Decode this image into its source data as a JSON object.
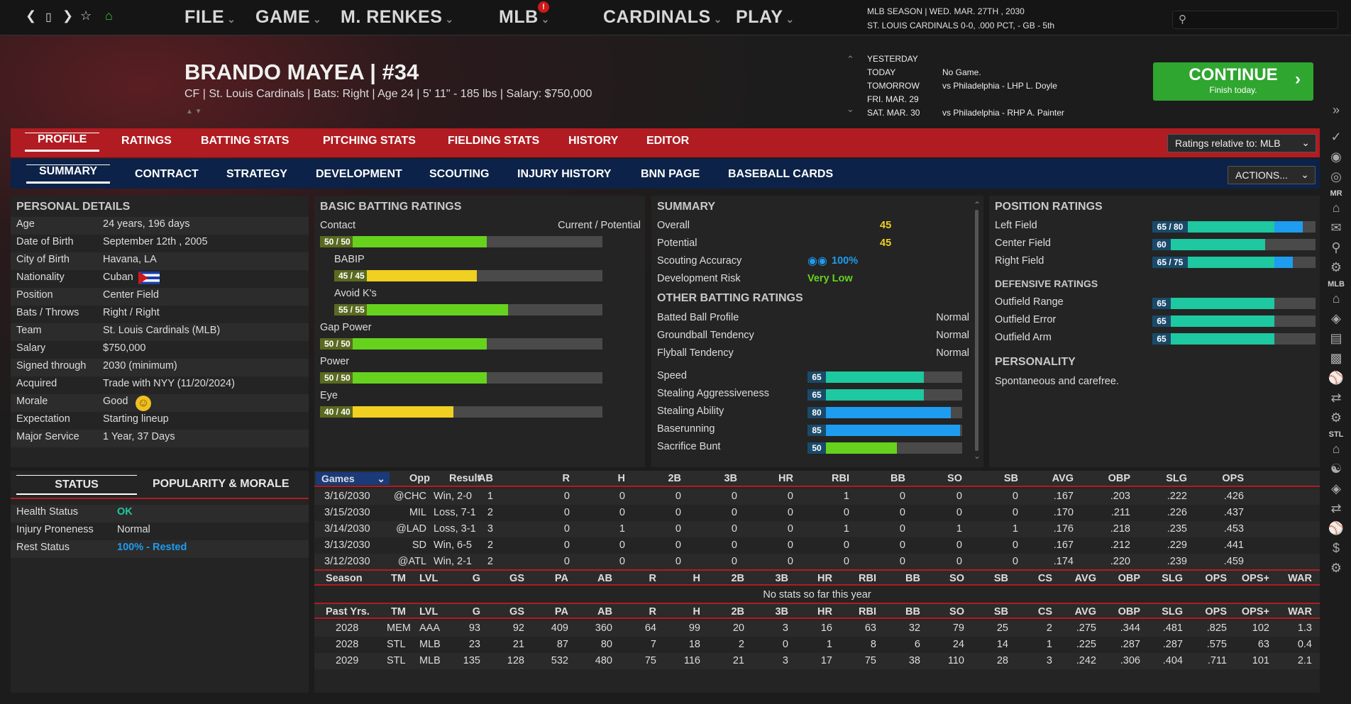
{
  "nav": {
    "icons": [
      "back-icon",
      "phone-icon",
      "forward-icon",
      "star-icon",
      "home-icon"
    ],
    "menus": [
      {
        "label": "FILE",
        "x": 260
      },
      {
        "label": "GAME",
        "x": 360
      },
      {
        "label": "M. RENKES",
        "x": 480
      },
      {
        "label": "MLB",
        "x": 703
      },
      {
        "label": "CARDINALS",
        "x": 850
      },
      {
        "label": "PLAY",
        "x": 1037
      }
    ],
    "badge": "!"
  },
  "season": {
    "line1": "MLB SEASON  |  WED. MAR. 27TH , 2030",
    "line2": "ST. LOUIS CARDINALS  0-0, .000 PCT, - GB - 5th"
  },
  "player": {
    "name": "BRANDO MAYEA  |  #34",
    "info": "CF | St. Louis Cardinals  |  Bats: Right  |  Age 24  |  5' 11\" - 185 lbs  |  Salary: $750,000"
  },
  "schedule": [
    {
      "day": "YESTERDAY",
      "game": ""
    },
    {
      "day": "TODAY",
      "game": "No Game."
    },
    {
      "day": "TOMORROW",
      "game": "vs Philadelphia - LHP L. Doyle"
    },
    {
      "day": "FRI. MAR. 29",
      "game": ""
    },
    {
      "day": "SAT. MAR. 30",
      "game": "vs Philadelphia - RHP A. Painter"
    }
  ],
  "continue": {
    "label": "CONTINUE",
    "sub": "Finish today."
  },
  "tabs1": [
    "PROFILE",
    "RATINGS",
    "BATTING STATS",
    "PITCHING STATS",
    "FIELDING STATS",
    "HISTORY",
    "EDITOR"
  ],
  "ratings_relative": "Ratings relative to: MLB",
  "tabs2": [
    "SUMMARY",
    "CONTRACT",
    "STRATEGY",
    "DEVELOPMENT",
    "SCOUTING",
    "INJURY HISTORY",
    "BNN PAGE",
    "BASEBALL CARDS"
  ],
  "actions": "ACTIONS...",
  "personal": {
    "title": "PERSONAL DETAILS",
    "rows": [
      [
        "Age",
        "24 years, 196 days"
      ],
      [
        "Date of Birth",
        "September 12th , 2005"
      ],
      [
        "City of Birth",
        "Havana, LA"
      ],
      [
        "Nationality",
        "Cuban"
      ],
      [
        "Position",
        "Center Field"
      ],
      [
        "Bats / Throws",
        "Right / Right"
      ],
      [
        "Team",
        "St. Louis Cardinals (MLB)"
      ],
      [
        "Salary",
        "$750,000"
      ],
      [
        "Signed through",
        "2030 (minimum)"
      ],
      [
        "Acquired",
        "Trade with NYY (11/20/2024)"
      ],
      [
        "Morale",
        "Good"
      ],
      [
        "Expectation",
        "Starting lineup"
      ],
      [
        "Major Service",
        "1 Year, 37 Days"
      ]
    ]
  },
  "status": {
    "tab_status": "STATUS",
    "tab_pop": "POPULARITY & MORALE",
    "rows": [
      [
        "Health Status",
        "OK"
      ],
      [
        "Injury Proneness",
        "Normal"
      ],
      [
        "Rest Status",
        "100% - Rested"
      ]
    ]
  },
  "batting": {
    "title": "BASIC BATTING RATINGS",
    "legend": "Current / Potential",
    "items": [
      {
        "label": "Contact",
        "val": "50 / 50",
        "cur": 50,
        "color": "#66d21e",
        "indent": false
      },
      {
        "label": "BABIP",
        "val": "45 / 45",
        "cur": 45,
        "color": "#f0d020",
        "indent": true
      },
      {
        "label": "Avoid K's",
        "val": "55 / 55",
        "cur": 55,
        "color": "#66d21e",
        "indent": true
      },
      {
        "label": "Gap Power",
        "val": "50 / 50",
        "cur": 50,
        "color": "#66d21e",
        "indent": false
      },
      {
        "label": "Power",
        "val": "50 / 50",
        "cur": 50,
        "color": "#66d21e",
        "indent": false
      },
      {
        "label": "Eye",
        "val": "40 / 40",
        "cur": 40,
        "color": "#f0d020",
        "indent": false
      }
    ]
  },
  "summary": {
    "title": "SUMMARY",
    "overall_l": "Overall",
    "overall": "45",
    "potential_l": "Potential",
    "potential": "45",
    "scout_l": "Scouting Accuracy",
    "scout": "100%",
    "risk_l": "Development Risk",
    "risk": "Very Low",
    "other_title": "OTHER BATTING RATINGS",
    "profile": [
      [
        "Batted Ball Profile",
        "Normal"
      ],
      [
        "Groundball Tendency",
        "Normal"
      ],
      [
        "Flyball Tendency",
        "Normal"
      ]
    ],
    "bars": [
      {
        "label": "Speed",
        "val": 65,
        "color": "#1ec8a0"
      },
      {
        "label": "Stealing Aggressiveness",
        "val": 65,
        "color": "#1ec8a0"
      },
      {
        "label": "Stealing Ability",
        "val": 80,
        "color": "#1e9cf0"
      },
      {
        "label": "Baserunning",
        "val": 85,
        "color": "#1e9cf0"
      },
      {
        "label": "Sacrifice Bunt",
        "val": 50,
        "color": "#66d21e"
      }
    ]
  },
  "position": {
    "title": "POSITION RATINGS",
    "items": [
      {
        "label": "Left Field",
        "val": "65 / 80",
        "cur": 65,
        "pot": 80
      },
      {
        "label": "Center Field",
        "val": "60",
        "cur": 60,
        "pot": 60
      },
      {
        "label": "Right Field",
        "val": "65 / 75",
        "cur": 65,
        "pot": 75
      }
    ],
    "def_title": "DEFENSIVE RATINGS",
    "def": [
      {
        "label": "Outfield Range",
        "val": "65",
        "cur": 65
      },
      {
        "label": "Outfield Error",
        "val": "65",
        "cur": 65
      },
      {
        "label": "Outfield Arm",
        "val": "65",
        "cur": 65
      }
    ],
    "pers_title": "PERSONALITY",
    "pers": "Spontaneous and carefree."
  },
  "games": {
    "dropdown": "Games",
    "headers": [
      "Opp",
      "Result",
      "AB",
      "R",
      "H",
      "2B",
      "3B",
      "HR",
      "RBI",
      "BB",
      "SO",
      "SB",
      "AVG",
      "OBP",
      "SLG",
      "OPS"
    ],
    "rows": [
      [
        "3/16/2030",
        "@CHC",
        "Win, 2-0",
        "1",
        "0",
        "0",
        "0",
        "0",
        "0",
        "1",
        "0",
        "0",
        "0",
        ".167",
        ".203",
        ".222",
        ".426"
      ],
      [
        "3/15/2030",
        "MIL",
        "Loss, 7-1",
        "2",
        "0",
        "0",
        "0",
        "0",
        "0",
        "0",
        "0",
        "0",
        "0",
        ".170",
        ".211",
        ".226",
        ".437"
      ],
      [
        "3/14/2030",
        "@LAD",
        "Loss, 3-1",
        "3",
        "0",
        "1",
        "0",
        "0",
        "0",
        "1",
        "0",
        "1",
        "1",
        ".176",
        ".218",
        ".235",
        ".453"
      ],
      [
        "3/13/2030",
        "SD",
        "Win, 6-5",
        "2",
        "0",
        "0",
        "0",
        "0",
        "0",
        "0",
        "0",
        "0",
        "0",
        ".167",
        ".212",
        ".229",
        ".441"
      ],
      [
        "3/12/2030",
        "@ATL",
        "Win, 2-1",
        "2",
        "0",
        "0",
        "0",
        "0",
        "0",
        "0",
        "0",
        "0",
        "0",
        ".174",
        ".220",
        ".239",
        ".459"
      ]
    ]
  },
  "season_tbl": {
    "headers": [
      "Season",
      "TM",
      "LVL",
      "G",
      "GS",
      "PA",
      "AB",
      "R",
      "H",
      "2B",
      "3B",
      "HR",
      "RBI",
      "BB",
      "SO",
      "SB",
      "CS",
      "AVG",
      "OBP",
      "SLG",
      "OPS",
      "OPS+",
      "WAR"
    ],
    "empty": "No stats so far this year"
  },
  "past": {
    "headers": [
      "Past Yrs.",
      "TM",
      "LVL",
      "G",
      "GS",
      "PA",
      "AB",
      "R",
      "H",
      "2B",
      "3B",
      "HR",
      "RBI",
      "BB",
      "SO",
      "SB",
      "CS",
      "AVG",
      "OBP",
      "SLG",
      "OPS",
      "OPS+",
      "WAR"
    ],
    "rows": [
      [
        "2028",
        "MEM",
        "AAA",
        "93",
        "92",
        "409",
        "360",
        "64",
        "99",
        "20",
        "3",
        "16",
        "63",
        "32",
        "79",
        "25",
        "2",
        ".275",
        ".344",
        ".481",
        ".825",
        "102",
        "1.3"
      ],
      [
        "2028",
        "STL",
        "MLB",
        "23",
        "21",
        "87",
        "80",
        "7",
        "18",
        "2",
        "0",
        "1",
        "8",
        "6",
        "24",
        "14",
        "1",
        ".225",
        ".287",
        ".287",
        ".575",
        "63",
        "0.4"
      ],
      [
        "2029",
        "STL",
        "MLB",
        "135",
        "128",
        "532",
        "480",
        "75",
        "116",
        "21",
        "3",
        "17",
        "75",
        "38",
        "110",
        "28",
        "3",
        ".242",
        ".306",
        ".404",
        ".711",
        "101",
        "2.1"
      ]
    ]
  },
  "sidebar": {
    "labels": [
      "MR",
      "MLB",
      "STL"
    ]
  }
}
